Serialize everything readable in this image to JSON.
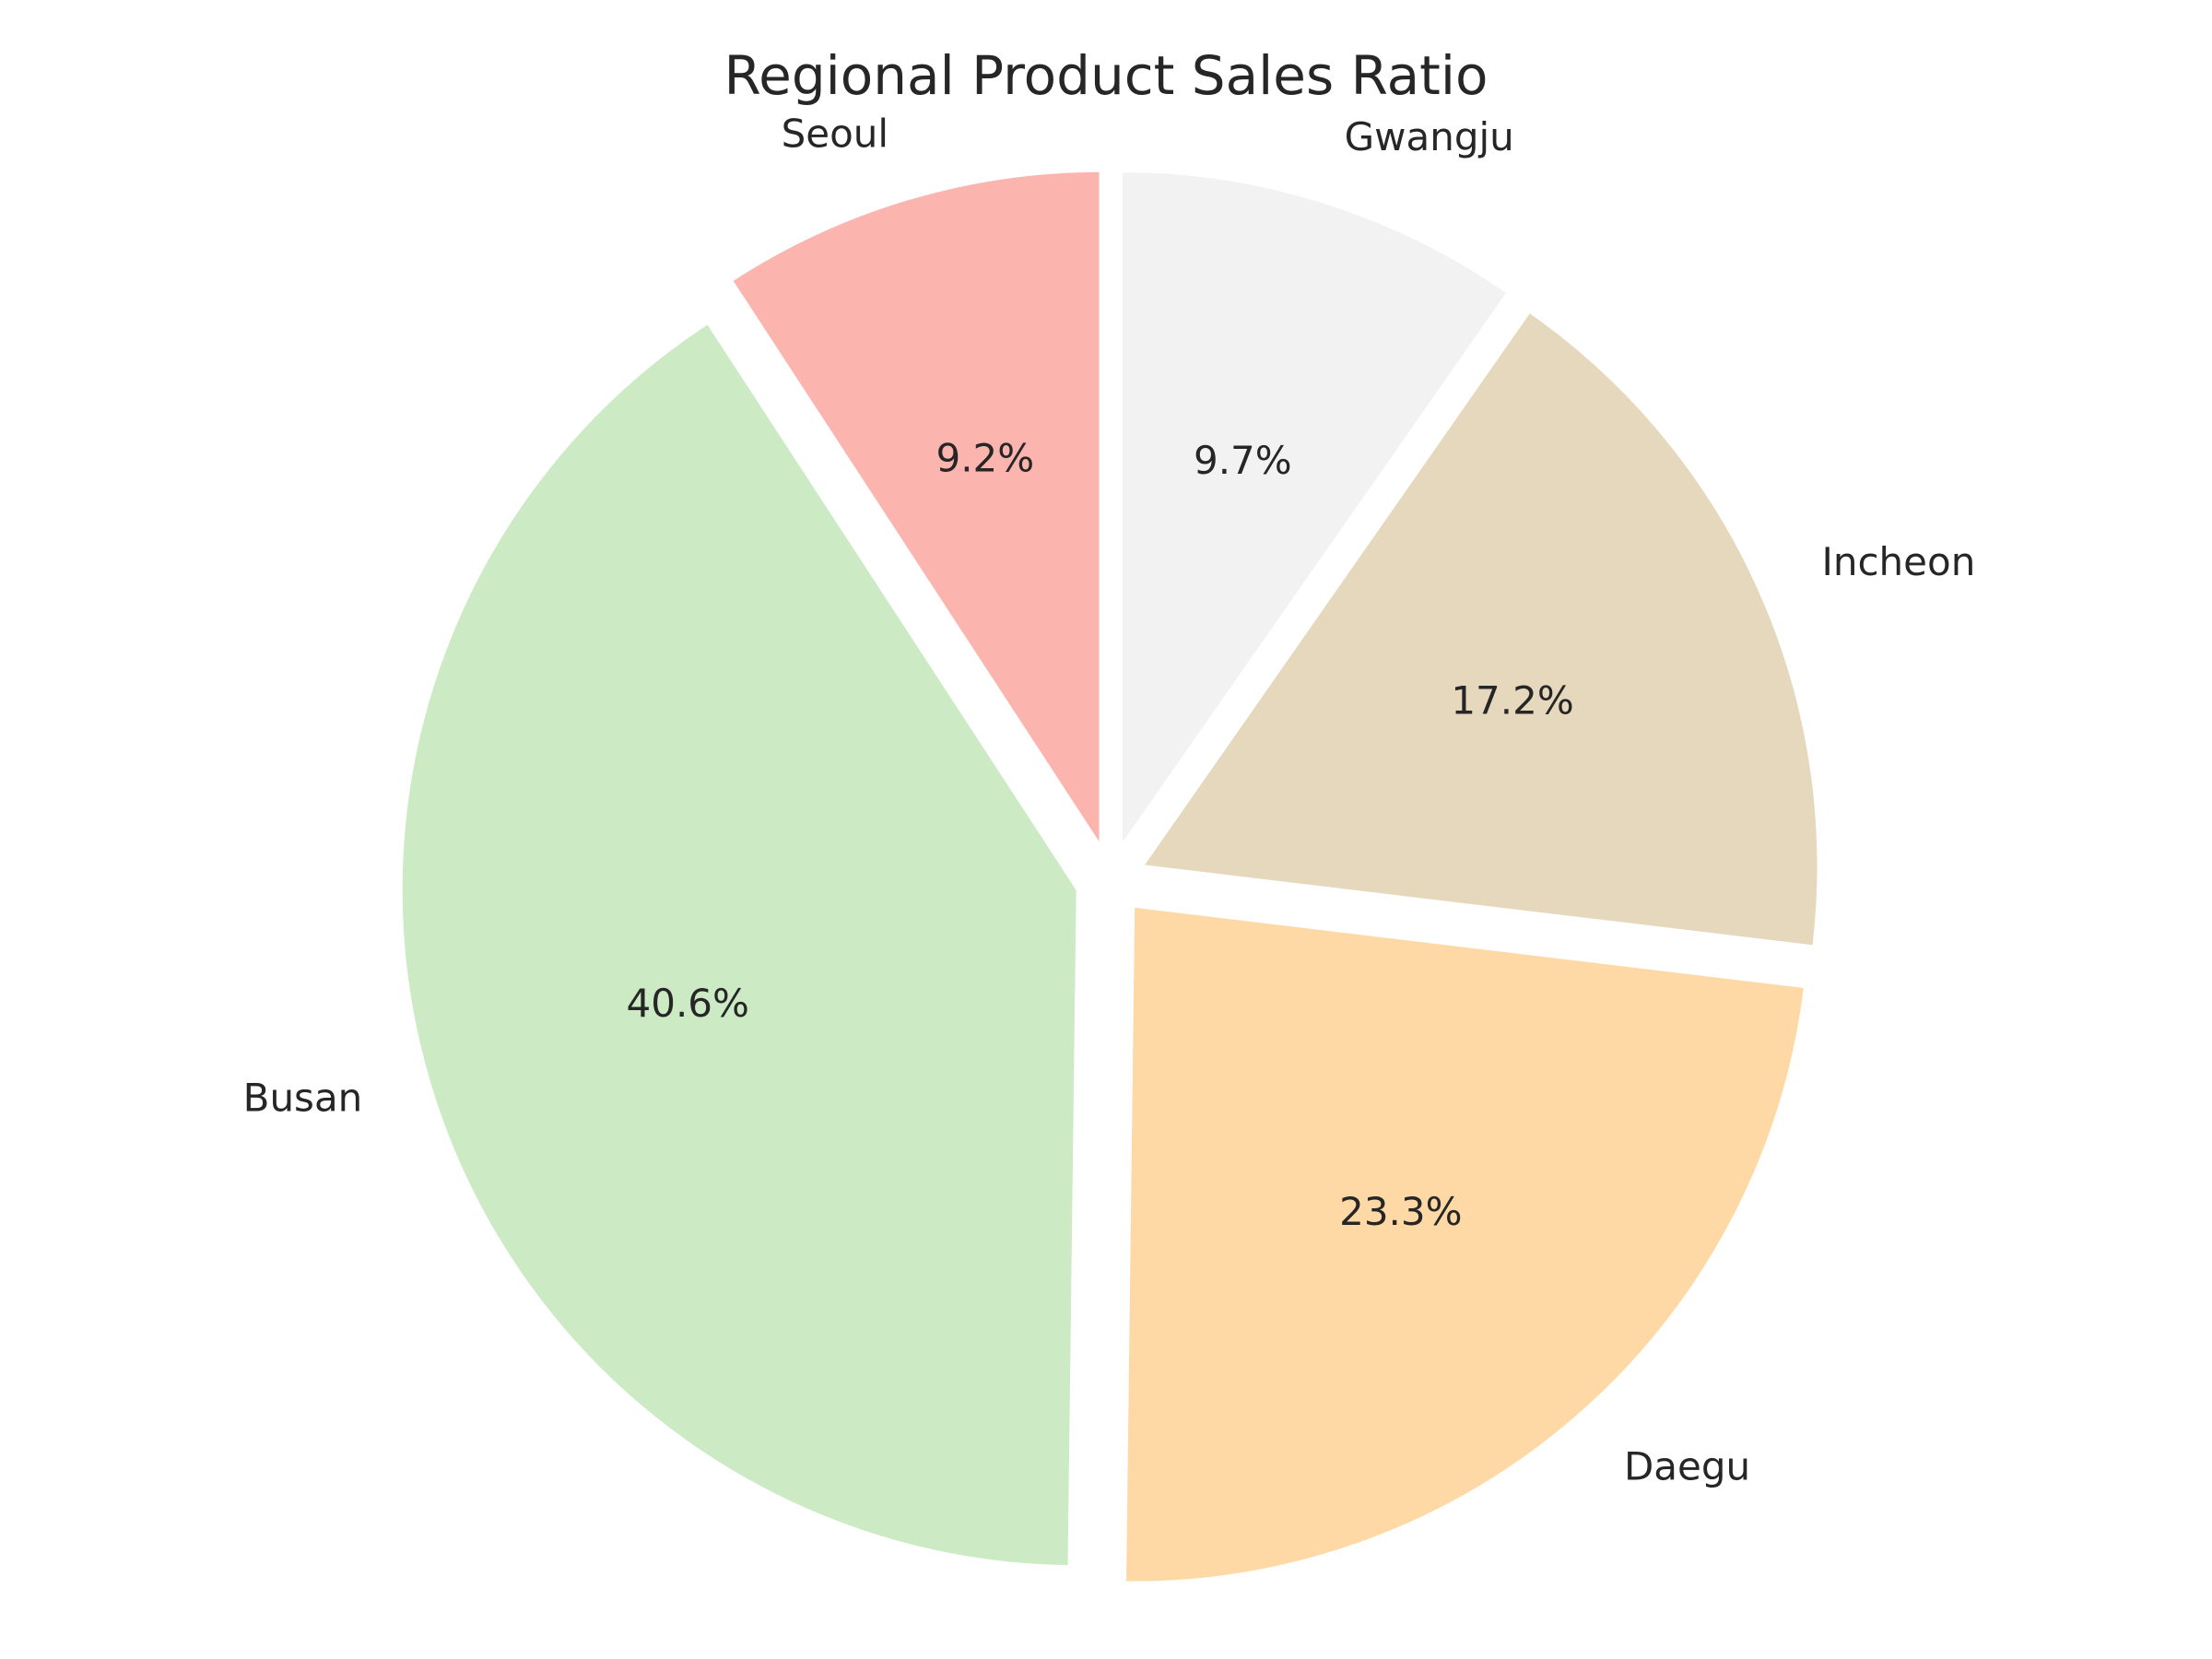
{
  "chart_data": {
    "type": "pie",
    "title": "Regional Product Sales Ratio",
    "categories": [
      "Seoul",
      "Busan",
      "Daegu",
      "Incheon",
      "Gwangju"
    ],
    "values": [
      9.2,
      40.6,
      23.3,
      17.2,
      9.7
    ],
    "value_labels": [
      "9.2%",
      "40.6%",
      "23.3%",
      "17.2%",
      "9.7%"
    ],
    "colors": [
      "#fbb4ae",
      "#ccebc5",
      "#fed9a6",
      "#e5d8bd",
      "#f2f2f2"
    ],
    "start_angle_deg": 90,
    "direction": "counterclockwise",
    "exploded": true,
    "legend": "none"
  }
}
